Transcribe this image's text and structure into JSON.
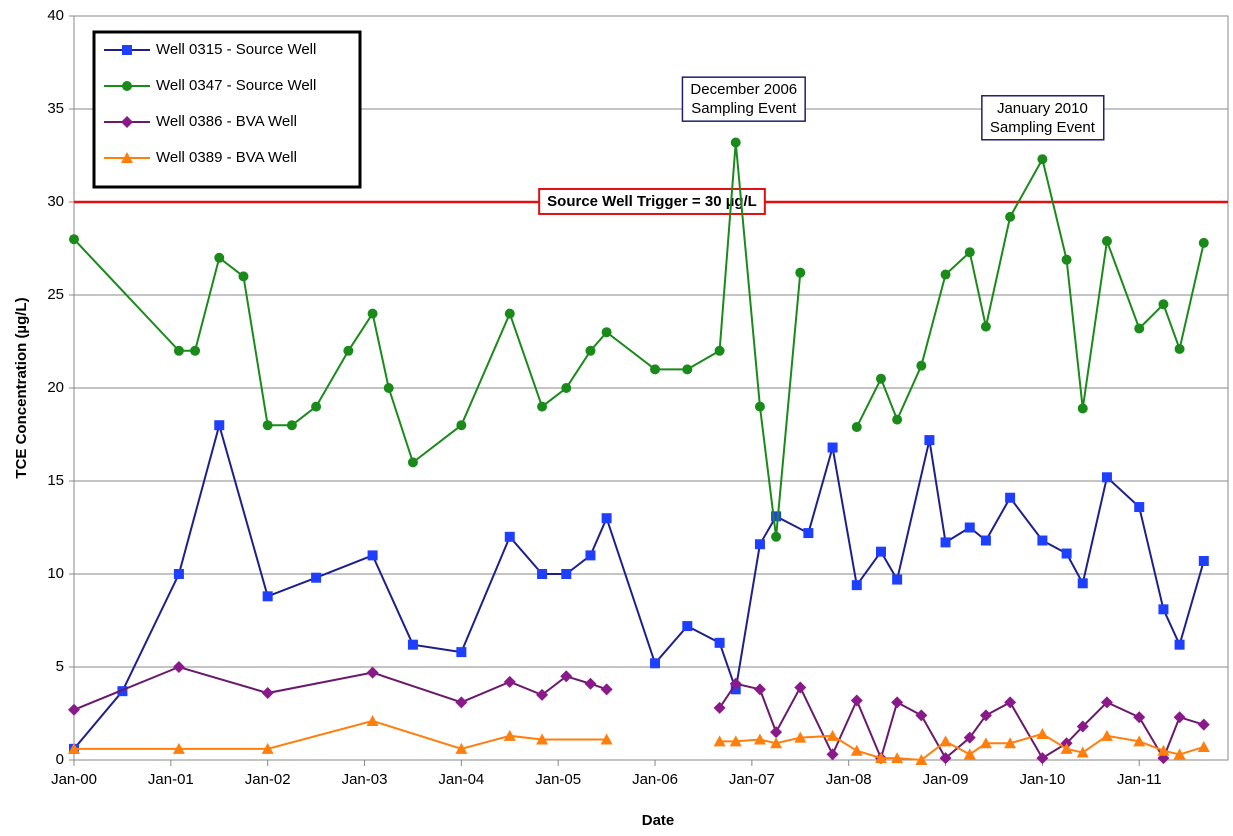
{
  "chart_data": {
    "type": "line",
    "x_label": "Date",
    "y_label": "TCE Concentration (µg/L)",
    "xlim": [
      "2000-01",
      "2011-12"
    ],
    "xticks": [
      {
        "value": "2000-01",
        "label": "Jan-00"
      },
      {
        "value": "2001-01",
        "label": "Jan-01"
      },
      {
        "value": "2002-01",
        "label": "Jan-02"
      },
      {
        "value": "2003-01",
        "label": "Jan-03"
      },
      {
        "value": "2004-01",
        "label": "Jan-04"
      },
      {
        "value": "2005-01",
        "label": "Jan-05"
      },
      {
        "value": "2006-01",
        "label": "Jan-06"
      },
      {
        "value": "2007-01",
        "label": "Jan-07"
      },
      {
        "value": "2008-01",
        "label": "Jan-08"
      },
      {
        "value": "2009-01",
        "label": "Jan-09"
      },
      {
        "value": "2010-01",
        "label": "Jan-10"
      },
      {
        "value": "2011-01",
        "label": "Jan-11"
      }
    ],
    "ylim": [
      0,
      40
    ],
    "yticks": [
      0,
      5,
      10,
      15,
      20,
      25,
      30,
      35,
      40
    ],
    "grid": true,
    "legend": "upper left",
    "series": [
      {
        "name": "Well 0315 - Source Well",
        "color": "#1f1f8c",
        "marker_color": "#1f3fff",
        "marker": "square",
        "x": [
          "2000-01",
          "2000-07",
          "2001-02",
          "2001-07",
          "2002-01",
          "2002-07",
          "2003-02",
          "2003-07",
          "2004-01",
          "2004-07",
          "2004-11",
          "2005-02",
          "2005-05",
          "2005-07",
          "2006-01",
          "2006-05",
          "2006-09",
          "2006-11",
          "2007-02",
          "2007-04",
          "2007-08",
          "2007-11",
          "2008-02",
          "2008-05",
          "2008-07",
          "2008-11",
          "2009-01",
          "2009-04",
          "2009-06",
          "2009-09",
          "2010-01",
          "2010-04",
          "2010-06",
          "2010-09",
          "2011-01",
          "2011-04",
          "2011-06",
          "2011-09"
        ],
        "values": [
          0.6,
          3.7,
          10.0,
          18.0,
          8.8,
          9.8,
          11.0,
          6.2,
          5.8,
          12.0,
          10.0,
          10.0,
          11.0,
          13.0,
          5.2,
          7.2,
          6.3,
          3.8,
          11.6,
          13.1,
          12.2,
          16.8,
          9.4,
          11.2,
          9.7,
          17.2,
          11.7,
          12.5,
          11.8,
          14.1,
          11.8,
          11.1,
          9.5,
          15.2,
          13.6,
          8.1,
          6.2,
          10.7
        ]
      },
      {
        "name": "Well 0347 - Source Well",
        "color": "#1a8a1a",
        "marker_color": "#1a8a1a",
        "marker": "circle",
        "x": [
          "2000-01",
          "2001-02",
          "2001-04",
          "2001-07",
          "2001-10",
          "2002-01",
          "2002-04",
          "2002-07",
          "2002-11",
          "2003-02",
          "2003-04",
          "2003-07",
          "2004-01",
          "2004-07",
          "2004-11",
          "2005-02",
          "2005-05",
          "2005-07",
          "2006-01",
          "2006-05",
          "2006-09",
          "2006-11",
          "2007-02",
          "2007-04",
          "2007-07",
          "2007-11",
          "2008-02",
          "2008-05",
          "2008-07",
          "2008-10",
          "2009-01",
          "2009-04",
          "2009-06",
          "2009-09",
          "2010-01",
          "2010-04",
          "2010-06",
          "2010-09",
          "2011-01",
          "2011-04",
          "2011-06",
          "2011-09"
        ],
        "values": [
          28,
          22,
          22,
          27,
          26,
          18,
          18,
          19,
          22,
          24,
          20,
          16,
          18,
          24,
          19,
          20,
          22,
          23,
          21,
          21,
          22,
          33.2,
          19,
          12,
          26.2,
          null,
          17.9,
          20.5,
          18.3,
          21.2,
          26.1,
          27.3,
          23.3,
          29.2,
          32.3,
          26.9,
          18.9,
          27.9,
          23.2,
          24.5,
          22.1,
          27.8
        ]
      },
      {
        "name": "Well 0386 - BVA Well",
        "color": "#6a1a6a",
        "marker_color": "#8a1a8a",
        "marker": "diamond",
        "x": [
          "2000-01",
          "2001-02",
          "2002-01",
          "2003-02",
          "2004-01",
          "2004-07",
          "2004-11",
          "2005-02",
          "2005-05",
          "2005-07",
          "2006-01",
          "2006-09",
          "2006-11",
          "2007-02",
          "2007-04",
          "2007-07",
          "2007-11",
          "2008-02",
          "2008-05",
          "2008-07",
          "2008-10",
          "2009-01",
          "2009-04",
          "2009-06",
          "2009-09",
          "2010-01",
          "2010-04",
          "2010-06",
          "2010-09",
          "2011-01",
          "2011-04",
          "2011-06",
          "2011-09"
        ],
        "values": [
          2.7,
          5.0,
          3.6,
          4.7,
          3.1,
          4.2,
          3.5,
          4.5,
          4.1,
          3.8,
          null,
          2.8,
          4.1,
          3.8,
          1.5,
          3.9,
          0.3,
          3.2,
          0.1,
          3.1,
          2.4,
          0.1,
          1.2,
          2.4,
          3.1,
          0.1,
          0.9,
          1.8,
          3.1,
          2.3,
          0.1,
          2.3,
          1.9
        ]
      },
      {
        "name": "Well 0389 - BVA Well",
        "color": "#ff7f0e",
        "marker_color": "#ff7f0e",
        "marker": "triangle",
        "x": [
          "2000-01",
          "2001-02",
          "2002-01",
          "2003-02",
          "2004-01",
          "2004-07",
          "2004-11",
          "2005-07",
          "2006-01",
          "2006-09",
          "2006-11",
          "2007-02",
          "2007-04",
          "2007-07",
          "2007-11",
          "2008-02",
          "2008-05",
          "2008-07",
          "2008-10",
          "2009-01",
          "2009-04",
          "2009-06",
          "2009-09",
          "2010-01",
          "2010-04",
          "2010-06",
          "2010-09",
          "2011-01",
          "2011-04",
          "2011-06",
          "2011-09"
        ],
        "values": [
          0.6,
          0.6,
          0.6,
          2.1,
          0.6,
          1.3,
          1.1,
          1.1,
          null,
          1.0,
          1.0,
          1.1,
          0.9,
          1.2,
          1.3,
          0.5,
          0.1,
          0.1,
          0.0,
          1.0,
          0.3,
          0.9,
          0.9,
          1.4,
          0.6,
          0.4,
          1.3,
          1.0,
          0.5,
          0.3,
          0.7
        ]
      }
    ],
    "reference_line": {
      "label": "Source Well Trigger = 30 µg/L",
      "value": 30,
      "color": "#e01010"
    },
    "annotations": [
      {
        "lines": [
          "December 2006",
          "Sampling Event"
        ],
        "x": "2006-12",
        "y": 35.5
      },
      {
        "lines": [
          "January 2010",
          "Sampling Event"
        ],
        "x": "2010-01",
        "y": 34.5
      }
    ]
  }
}
